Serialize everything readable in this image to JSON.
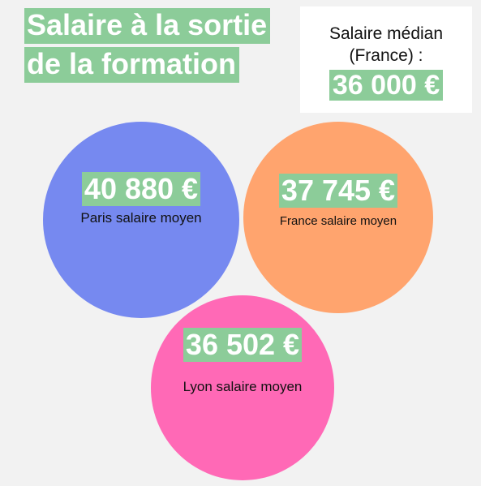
{
  "title": {
    "line1": "Salaire à la sortie",
    "line2": "de la formation"
  },
  "median": {
    "label_line1": "Salaire médian",
    "label_line2": "(France) :",
    "value": "36 000 €"
  },
  "salaries": [
    {
      "amount": "40 880 €",
      "label": "Paris salaire moyen",
      "color": "#7689f0"
    },
    {
      "amount": "37 745 €",
      "label": "France salaire moyen",
      "color": "#ffa46e"
    },
    {
      "amount": "36 502 €",
      "label": "Lyon salaire moyen",
      "color": "#ff69b6"
    }
  ],
  "colors": {
    "highlight": "#8ccc99",
    "background": "#f2f2f2"
  }
}
